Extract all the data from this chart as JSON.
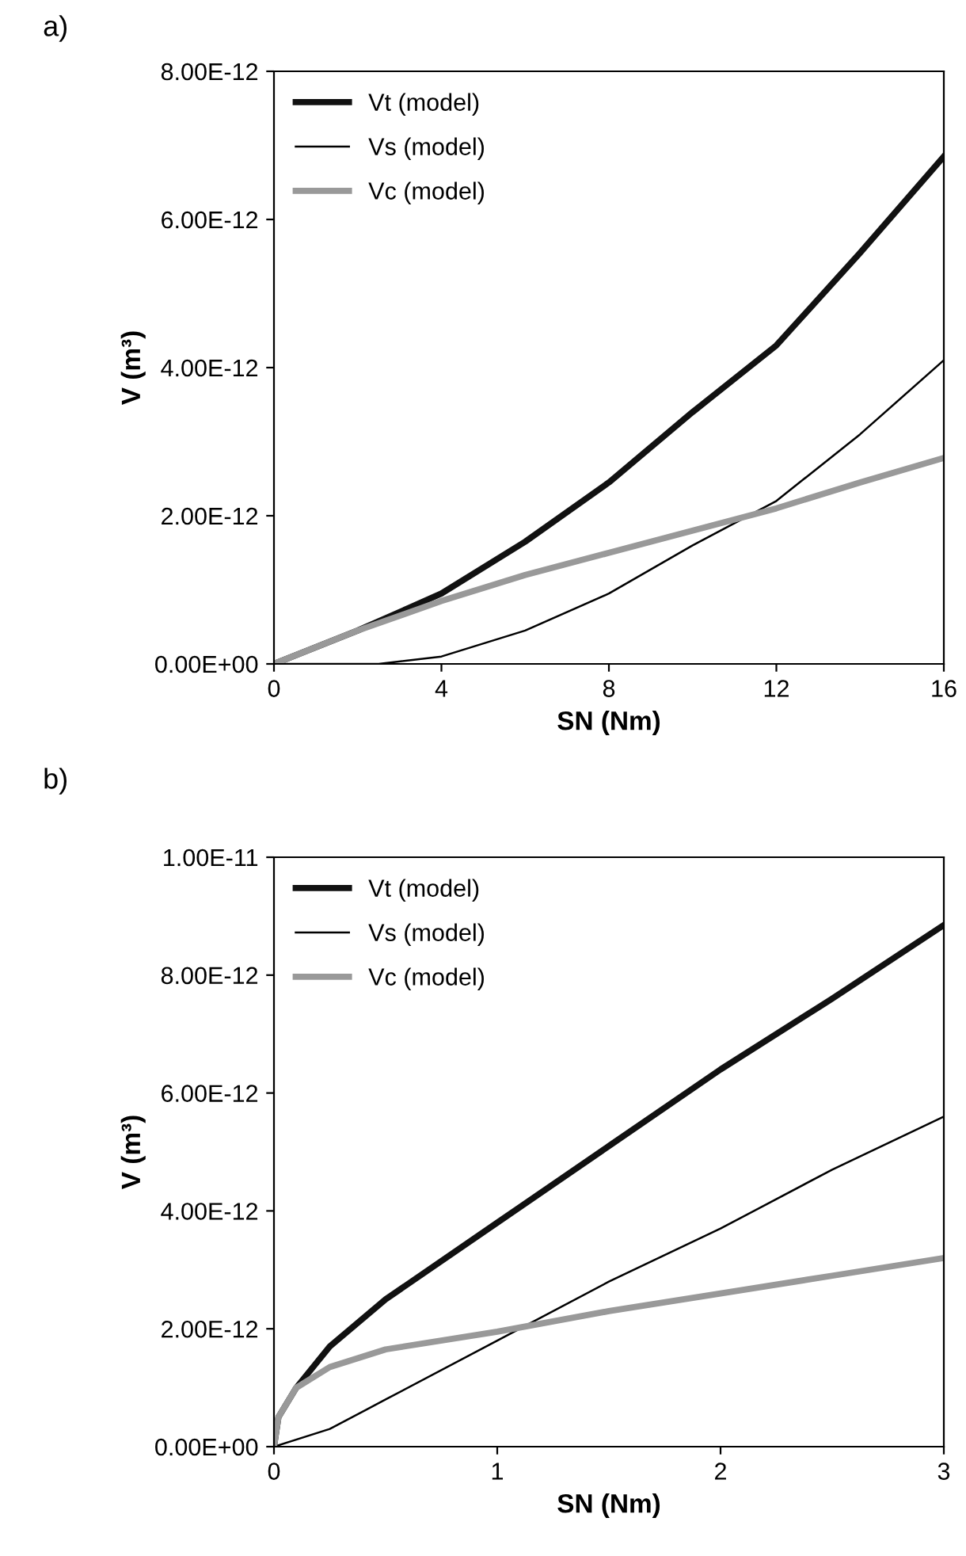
{
  "chart_data": [
    {
      "type": "line",
      "title": "a)",
      "xlabel": "SN (Nm)",
      "ylabel": "V (m³)",
      "xlim": [
        0,
        16
      ],
      "xticks": [
        0,
        4,
        8,
        12,
        16
      ],
      "ylim": [
        0,
        8e-12
      ],
      "yticks": [
        {
          "value": 0,
          "label": "0.00E+00"
        },
        {
          "value": 2e-12,
          "label": "2.00E-12"
        },
        {
          "value": 4e-12,
          "label": "4.00E-12"
        },
        {
          "value": 6e-12,
          "label": "6.00E-12"
        },
        {
          "value": 8e-12,
          "label": "8.00E-12"
        }
      ],
      "legend": "top left",
      "grid": false,
      "x": [
        0,
        2,
        4,
        6,
        8,
        10,
        12,
        14,
        16
      ],
      "series": [
        {
          "name": "Vt (model)",
          "color": "#111111",
          "values": [
            0,
            4.5e-13,
            9.5e-13,
            1.65e-12,
            2.45e-12,
            3.4e-12,
            4.3e-12,
            5.55e-12,
            6.85e-12
          ]
        },
        {
          "name": "Vs (model)",
          "color": "#000000",
          "x": [
            0,
            2.5,
            4,
            6,
            8,
            10,
            12,
            14,
            16
          ],
          "values": [
            0,
            0,
            1e-13,
            4.5e-13,
            9.5e-13,
            1.6e-12,
            2.2e-12,
            3.1e-12,
            4.1e-12
          ]
        },
        {
          "name": "Vc (model)",
          "color": "#999999",
          "values": [
            0,
            4.5e-13,
            8.5e-13,
            1.2e-12,
            1.5e-12,
            1.8e-12,
            2.1e-12,
            2.45e-12,
            2.78e-12
          ]
        }
      ]
    },
    {
      "type": "line",
      "title": "b)",
      "xlabel": "SN (Nm)",
      "ylabel": "V (m³)",
      "xlim": [
        0,
        3
      ],
      "xticks": [
        0,
        1,
        2,
        3
      ],
      "ylim": [
        0,
        1e-11
      ],
      "yticks": [
        {
          "value": 0,
          "label": "0.00E+00"
        },
        {
          "value": 2e-12,
          "label": "2.00E-12"
        },
        {
          "value": 4e-12,
          "label": "4.00E-12"
        },
        {
          "value": 6e-12,
          "label": "6.00E-12"
        },
        {
          "value": 8e-12,
          "label": "8.00E-12"
        },
        {
          "value": 1e-11,
          "label": "1.00E-11"
        }
      ],
      "legend": "top left",
      "grid": false,
      "x": [
        0,
        0.02,
        0.1,
        0.25,
        0.5,
        1,
        1.5,
        2,
        2.5,
        3
      ],
      "series": [
        {
          "name": "Vt (model)",
          "color": "#111111",
          "values": [
            0,
            5e-13,
            1e-12,
            1.7e-12,
            2.5e-12,
            3.8e-12,
            5.1e-12,
            6.4e-12,
            7.6e-12,
            8.85e-12
          ]
        },
        {
          "name": "Vs (model)",
          "color": "#000000",
          "x": [
            0,
            0.25,
            0.5,
            1,
            1.5,
            2,
            2.5,
            3
          ],
          "values": [
            0,
            3e-13,
            8e-13,
            1.8e-12,
            2.8e-12,
            3.7e-12,
            4.7e-12,
            5.6e-12
          ]
        },
        {
          "name": "Vc (model)",
          "color": "#999999",
          "values": [
            0,
            5e-13,
            1e-12,
            1.35e-12,
            1.65e-12,
            1.95e-12,
            2.3e-12,
            2.6e-12,
            2.9e-12,
            3.2e-12
          ]
        }
      ]
    }
  ]
}
